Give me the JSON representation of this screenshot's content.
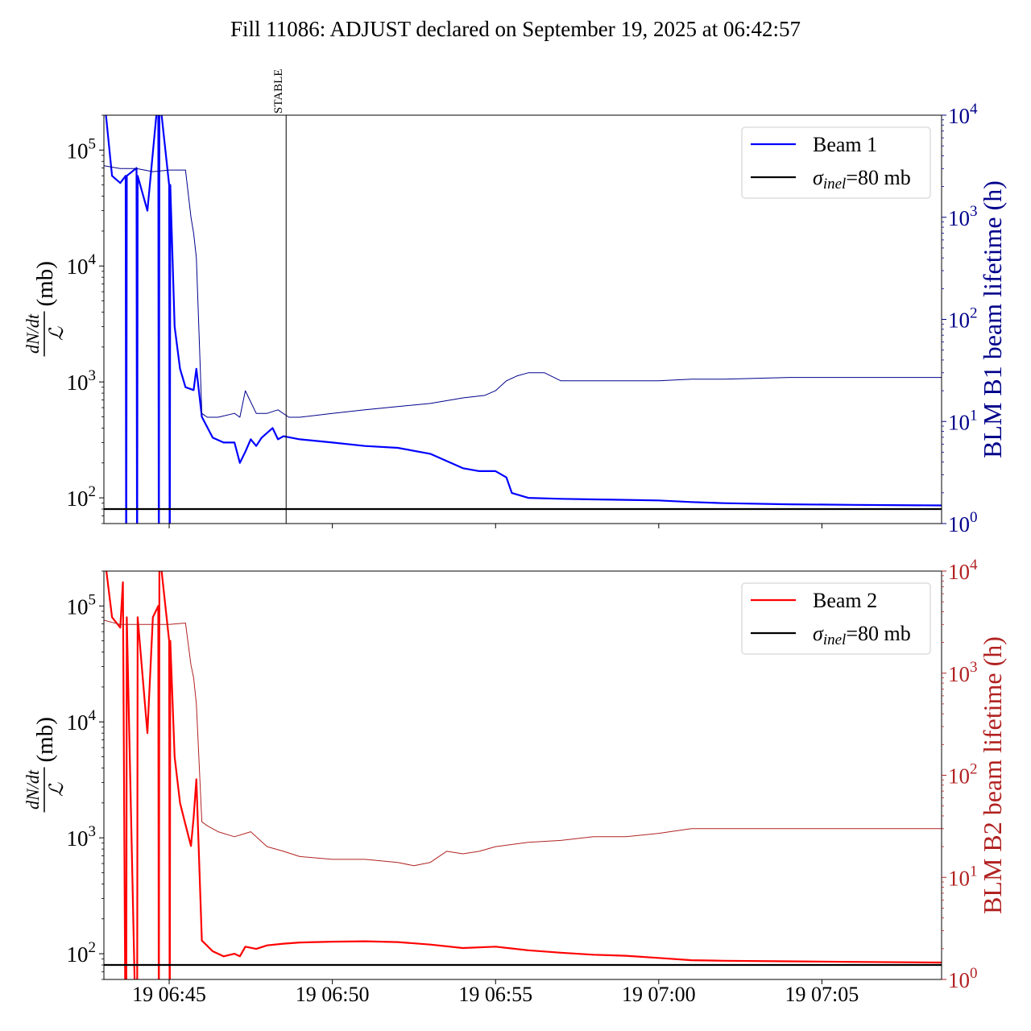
{
  "figure": {
    "title": "Fill 11086: ADJUST declared on September 19, 2025 at 06:42:57"
  },
  "colors": {
    "beam1": "#0000ff",
    "beam1_lifetime": "#00008b",
    "beam2": "#ff0000",
    "beam2_lifetime": "#b22222",
    "reference": "#000000",
    "stable_marker": "#000000"
  },
  "chart_data": [
    {
      "type": "line",
      "panel": "top",
      "y_label_fraction_numerator": "dN/dt",
      "y_label_fraction_denominator": "ℒ",
      "y_label_unit": "(mb)",
      "y2_label": "BLM B1 beam lifetime (h)",
      "y_scale": "log",
      "y2_scale": "log",
      "ylim": [
        60,
        200000
      ],
      "y2lim": [
        1,
        10000
      ],
      "xlim": [
        "06:43:00",
        "07:08:40"
      ],
      "x_ticks": [
        {
          "t": "06:45:00",
          "label": ""
        },
        {
          "t": "06:50:00",
          "label": ""
        },
        {
          "t": "06:55:00",
          "label": ""
        },
        {
          "t": "07:00:00",
          "label": ""
        },
        {
          "t": "07:05:00",
          "label": ""
        }
      ],
      "y_ticks": [
        {
          "v": 100,
          "base": "10",
          "exp": "2"
        },
        {
          "v": 1000,
          "base": "10",
          "exp": "3"
        },
        {
          "v": 10000,
          "base": "10",
          "exp": "4"
        },
        {
          "v": 100000,
          "base": "10",
          "exp": "5"
        }
      ],
      "y2_ticks": [
        {
          "v": 1,
          "base": "10",
          "exp": "0"
        },
        {
          "v": 10,
          "base": "10",
          "exp": "1"
        },
        {
          "v": 100,
          "base": "10",
          "exp": "2"
        },
        {
          "v": 1000,
          "base": "10",
          "exp": "3"
        },
        {
          "v": 10000,
          "base": "10",
          "exp": "4"
        }
      ],
      "annotation": {
        "label": "STABLE",
        "t": "06:48:35"
      },
      "legend": {
        "placement": "top-right",
        "entries": [
          {
            "label": "Beam 1",
            "series": "beam1"
          },
          {
            "label_symbol": "σ",
            "label_sub": "inel",
            "label_rest": "=80 mb",
            "series": "reference"
          }
        ]
      },
      "series": [
        {
          "name": "Beam 1",
          "axis": "left",
          "x": [
            "06:43:00",
            "06:43:15",
            "06:43:30",
            "06:43:40",
            "06:43:41",
            "06:43:42",
            "06:44:00",
            "06:44:01",
            "06:44:02",
            "06:44:20",
            "06:44:40",
            "06:44:41",
            "06:44:42",
            "06:45:00",
            "06:45:01",
            "06:45:02",
            "06:45:10",
            "06:45:20",
            "06:45:30",
            "06:45:45",
            "06:45:50",
            "06:46:00",
            "06:46:20",
            "06:46:40",
            "06:47:00",
            "06:47:10",
            "06:47:20",
            "06:47:30",
            "06:47:40",
            "06:47:50",
            "06:48:10",
            "06:48:20",
            "06:48:30",
            "06:49:00",
            "06:50:00",
            "06:51:00",
            "06:52:00",
            "06:53:00",
            "06:54:00",
            "06:54:30",
            "06:55:00",
            "06:55:20",
            "06:55:30",
            "06:56:00",
            "06:57:00",
            "06:58:00",
            "06:59:00",
            "07:00:00",
            "07:01:00",
            "07:02:00",
            "07:04:00",
            "07:06:00",
            "07:08:40"
          ],
          "values": [
            300000,
            60000,
            52000,
            60000,
            10,
            60000,
            70000,
            10,
            60000,
            30000,
            300000,
            10,
            300000,
            50000,
            10,
            50000,
            3000,
            1300,
            900,
            850,
            1300,
            500,
            330,
            300,
            300,
            200,
            250,
            320,
            280,
            330,
            400,
            320,
            340,
            320,
            300,
            280,
            270,
            240,
            180,
            170,
            170,
            150,
            110,
            100,
            98,
            97,
            96,
            95,
            92,
            90,
            88,
            87,
            86
          ]
        },
        {
          "name": "reference",
          "axis": "left",
          "x": [
            "06:43:00",
            "07:08:40"
          ],
          "values": [
            80,
            80
          ]
        },
        {
          "name": "BLM B1 beam lifetime",
          "axis": "right",
          "x": [
            "06:43:00",
            "06:43:30",
            "06:44:00",
            "06:44:30",
            "06:45:00",
            "06:45:30",
            "06:45:40",
            "06:45:45",
            "06:45:50",
            "06:46:00",
            "06:46:10",
            "06:46:30",
            "06:47:00",
            "06:47:10",
            "06:47:20",
            "06:47:40",
            "06:48:00",
            "06:48:20",
            "06:48:40",
            "06:49:00",
            "06:50:00",
            "06:51:00",
            "06:52:00",
            "06:53:00",
            "06:54:00",
            "06:54:40",
            "06:55:00",
            "06:55:20",
            "06:55:40",
            "06:56:00",
            "06:56:30",
            "06:57:00",
            "06:58:00",
            "07:00:00",
            "07:01:00",
            "07:02:00",
            "07:04:00",
            "07:06:00",
            "07:08:40"
          ],
          "values": [
            3200,
            3000,
            3000,
            2800,
            2900,
            2900,
            1000,
            700,
            400,
            12,
            11,
            11,
            12,
            11,
            20,
            12,
            12,
            13,
            11,
            11,
            12,
            13,
            14,
            15,
            17,
            18,
            20,
            25,
            28,
            30,
            30,
            25,
            25,
            25,
            26,
            26,
            27,
            27,
            27
          ]
        }
      ]
    },
    {
      "type": "line",
      "panel": "bottom",
      "y_label_fraction_numerator": "dN/dt",
      "y_label_fraction_denominator": "ℒ",
      "y_label_unit": "(mb)",
      "y2_label": "BLM B2 beam lifetime (h)",
      "y_scale": "log",
      "y2_scale": "log",
      "ylim": [
        60,
        200000
      ],
      "y2lim": [
        1,
        10000
      ],
      "xlim": [
        "06:43:00",
        "07:08:40"
      ],
      "x_ticks": [
        {
          "t": "06:45:00",
          "label": "19 06:45"
        },
        {
          "t": "06:50:00",
          "label": "19 06:50"
        },
        {
          "t": "06:55:00",
          "label": "19 06:55"
        },
        {
          "t": "07:00:00",
          "label": "19 07:00"
        },
        {
          "t": "07:05:00",
          "label": "19 07:05"
        }
      ],
      "y_ticks": [
        {
          "v": 100,
          "base": "10",
          "exp": "2"
        },
        {
          "v": 1000,
          "base": "10",
          "exp": "3"
        },
        {
          "v": 10000,
          "base": "10",
          "exp": "4"
        },
        {
          "v": 100000,
          "base": "10",
          "exp": "5"
        }
      ],
      "y2_ticks": [
        {
          "v": 1,
          "base": "10",
          "exp": "0"
        },
        {
          "v": 10,
          "base": "10",
          "exp": "1"
        },
        {
          "v": 100,
          "base": "10",
          "exp": "2"
        },
        {
          "v": 1000,
          "base": "10",
          "exp": "3"
        },
        {
          "v": 10000,
          "base": "10",
          "exp": "4"
        }
      ],
      "legend": {
        "placement": "top-right",
        "entries": [
          {
            "label": "Beam 2",
            "series": "beam2"
          },
          {
            "label_symbol": "σ",
            "label_sub": "inel",
            "label_rest": "=80 mb",
            "series": "reference"
          }
        ]
      },
      "series": [
        {
          "name": "Beam 2",
          "axis": "left",
          "x": [
            "06:43:00",
            "06:43:15",
            "06:43:30",
            "06:43:35",
            "06:43:40",
            "06:43:41",
            "06:43:42",
            "06:44:00",
            "06:44:01",
            "06:44:02",
            "06:44:20",
            "06:44:30",
            "06:44:40",
            "06:44:41",
            "06:44:42",
            "06:45:00",
            "06:45:01",
            "06:45:02",
            "06:45:10",
            "06:45:20",
            "06:45:30",
            "06:45:40",
            "06:45:45",
            "06:45:50",
            "06:46:00",
            "06:46:20",
            "06:46:40",
            "06:47:00",
            "06:47:10",
            "06:47:20",
            "06:47:40",
            "06:48:00",
            "06:48:30",
            "06:49:00",
            "06:50:00",
            "06:51:00",
            "06:52:00",
            "06:53:00",
            "06:54:00",
            "06:55:00",
            "06:56:00",
            "06:57:00",
            "06:58:00",
            "06:59:00",
            "07:00:00",
            "07:01:00",
            "07:02:00",
            "07:04:00",
            "07:06:00",
            "07:08:40"
          ],
          "values": [
            300000,
            80000,
            65000,
            160000,
            10,
            10,
            80000,
            10,
            10,
            80000,
            8000,
            80000,
            100000,
            10,
            300000,
            50000,
            10,
            50000,
            5000,
            2000,
            1300,
            850,
            1500,
            3200,
            130,
            105,
            95,
            100,
            95,
            115,
            110,
            118,
            122,
            125,
            127,
            128,
            126,
            120,
            112,
            115,
            107,
            102,
            98,
            96,
            92,
            88,
            87,
            86,
            85,
            84
          ]
        },
        {
          "name": "reference",
          "axis": "left",
          "x": [
            "06:43:00",
            "07:08:40"
          ],
          "values": [
            80,
            80
          ]
        },
        {
          "name": "BLM B2 beam lifetime",
          "axis": "right",
          "x": [
            "06:43:00",
            "06:43:30",
            "06:44:00",
            "06:44:30",
            "06:45:00",
            "06:45:30",
            "06:45:40",
            "06:45:45",
            "06:45:50",
            "06:46:00",
            "06:46:10",
            "06:46:30",
            "06:47:00",
            "06:47:30",
            "06:48:00",
            "06:48:30",
            "06:49:00",
            "06:50:00",
            "06:51:00",
            "06:52:00",
            "06:52:30",
            "06:53:00",
            "06:53:30",
            "06:54:00",
            "06:54:30",
            "06:55:00",
            "06:56:00",
            "06:57:00",
            "06:58:00",
            "06:59:00",
            "07:00:00",
            "07:01:00",
            "07:02:00",
            "07:04:00",
            "07:06:00",
            "07:08:40"
          ],
          "values": [
            3300,
            3000,
            3000,
            3000,
            3000,
            3100,
            1200,
            900,
            500,
            35,
            32,
            28,
            25,
            28,
            20,
            18,
            16,
            15,
            15,
            14,
            13,
            14,
            18,
            17,
            18,
            20,
            22,
            23,
            25,
            25,
            27,
            30,
            30,
            30,
            30,
            30
          ]
        }
      ]
    }
  ]
}
